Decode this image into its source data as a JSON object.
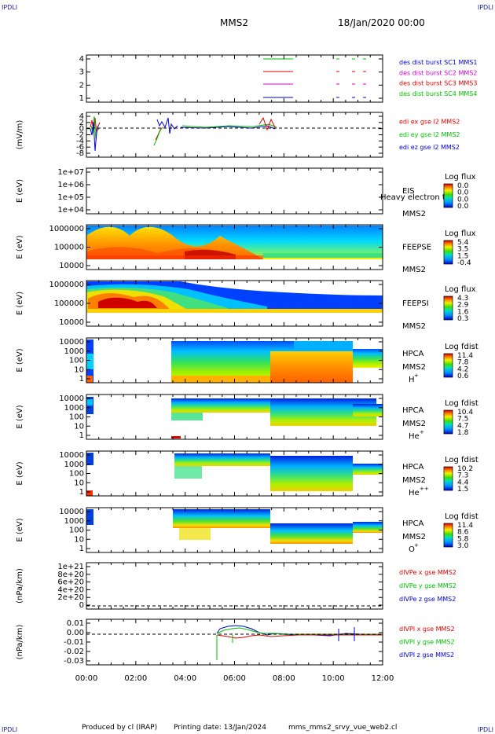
{
  "header": {
    "corner_tl": "IPDLI",
    "corner_tr": "IPDLI",
    "corner_bl": "IPDLI",
    "corner_br": "IPDLI",
    "spacecraft": "MMS2",
    "date": "18/Jan/2020 00:00"
  },
  "footer": {
    "produced_by": "Produced by cl (IRAP)",
    "printing_date": "Printing date: 13/Jan/2024",
    "filename": "mms_mms2_srvy_vue_web2.cl"
  },
  "colors": {
    "red": "#e00000",
    "green": "#00c000",
    "blue": "#0000d0",
    "magenta": "#d000d0",
    "dash": "#000000"
  },
  "chart_data": {
    "type": "line",
    "x_axis": {
      "range_hours": [
        0,
        12
      ],
      "tick_labels": [
        "00:00",
        "02:00",
        "04:00",
        "06:00",
        "08:00",
        "10:00",
        "12:00"
      ]
    },
    "panels": [
      {
        "id": "burst",
        "ylabel": "",
        "yticks": [
          "4",
          "3",
          "2",
          "1"
        ],
        "legend": [
          {
            "text": "des dist burst SC1 MMS1",
            "color": "#0000d0"
          },
          {
            "text": "des dist burst SC2 MMS2",
            "color": "#d000d0"
          },
          {
            "text": "des dist burst SC3 MMS3",
            "color": "#e00000"
          },
          {
            "text": "des dist burst SC4 MMS4",
            "color": "#00c000"
          }
        ]
      },
      {
        "id": "edi",
        "ylabel": "(mV/m)",
        "yticks": [
          "4",
          "2",
          "0",
          "-2",
          "-4",
          "-6",
          "-8"
        ],
        "legend": [
          {
            "text": "edi ex gse l2 MMS2",
            "color": "#e00000"
          },
          {
            "text": "edi ey gse l2 MMS2",
            "color": "#00c000"
          },
          {
            "text": "edi ez gse l2 MMS2",
            "color": "#0000d0"
          }
        ]
      },
      {
        "id": "eis",
        "ylabel": "E (eV)",
        "yticks": [
          "1e+07",
          "1e+06",
          "1e+05",
          "1e+04"
        ],
        "instrument": "EIS",
        "subtitle": "Heavy electron to",
        "spacecraft": "MMS2",
        "cb_title": "Log flux",
        "cb_ticks": [
          "0.0",
          "0.0",
          "0.0",
          "0.0"
        ]
      },
      {
        "id": "feepse",
        "ylabel": "E (eV)",
        "yticks": [
          "1000000",
          "100000",
          "10000"
        ],
        "instrument": "FEEPSE",
        "spacecraft": "MMS2",
        "cb_title": "Log flux",
        "cb_ticks": [
          "5.4",
          "3.5",
          "1.5",
          "-0.4"
        ]
      },
      {
        "id": "feepsi",
        "ylabel": "E (eV)",
        "yticks": [
          "1000000",
          "100000",
          "10000"
        ],
        "instrument": "FEEPSI",
        "spacecraft": "MMS2",
        "cb_title": "Log flux",
        "cb_ticks": [
          "4.3",
          "2.9",
          "1.6",
          "0.3"
        ]
      },
      {
        "id": "hpca_h",
        "ylabel": "E (eV)",
        "yticks": [
          "10000",
          "1000",
          "100",
          "10",
          "1"
        ],
        "instrument": "HPCA",
        "spacecraft": "MMS2",
        "species": "H",
        "species_sup": "+",
        "cb_title": "Log fdist",
        "cb_ticks": [
          "11.4",
          "7.8",
          "4.2",
          "0.6"
        ]
      },
      {
        "id": "hpca_he",
        "ylabel": "E (eV)",
        "yticks": [
          "10000",
          "1000",
          "100",
          "10",
          "1"
        ],
        "instrument": "HPCA",
        "spacecraft": "MMS2",
        "species": "He",
        "species_sup": "+",
        "cb_title": "Log fdist",
        "cb_ticks": [
          "10.4",
          "7.5",
          "4.7",
          "1.8"
        ]
      },
      {
        "id": "hpca_he2",
        "ylabel": "E (eV)",
        "yticks": [
          "10000",
          "1000",
          "100",
          "10",
          "1"
        ],
        "instrument": "HPCA",
        "spacecraft": "MMS2",
        "species": "He",
        "species_sup": "++",
        "cb_title": "Log fdist",
        "cb_ticks": [
          "10.2",
          "7.3",
          "4.4",
          "1.5"
        ]
      },
      {
        "id": "hpca_o",
        "ylabel": "E (eV)",
        "yticks": [
          "10000",
          "1000",
          "100",
          "10",
          "1"
        ],
        "instrument": "HPCA",
        "spacecraft": "MMS2",
        "species": "O",
        "species_sup": "+",
        "cb_title": "Log fdist",
        "cb_ticks": [
          "11.4",
          "8.6",
          "5.8",
          "3.0"
        ]
      },
      {
        "id": "divpe",
        "ylabel": "(nPa/km)",
        "yticks": [
          "1e+21",
          "8e+20",
          "6e+20",
          "4e+20",
          "2e+20",
          "0"
        ],
        "legend": [
          {
            "text": "dIVPe x gse MMS2",
            "color": "#e00000"
          },
          {
            "text": "dIVPe y gse MMS2",
            "color": "#00c000"
          },
          {
            "text": "dIVPe z gse MMS2",
            "color": "#0000d0"
          }
        ]
      },
      {
        "id": "divpi",
        "ylabel": "(nPa/km)",
        "yticks": [
          "0.01",
          "0.00",
          "-0.01",
          "-0.02",
          "-0.03"
        ],
        "legend": [
          {
            "text": "dIVPI x gse MMS2",
            "color": "#e00000"
          },
          {
            "text": "dIVPI y gse MMS2",
            "color": "#00c000"
          },
          {
            "text": "dIVPI z gse MMS2",
            "color": "#0000d0"
          }
        ]
      }
    ]
  }
}
